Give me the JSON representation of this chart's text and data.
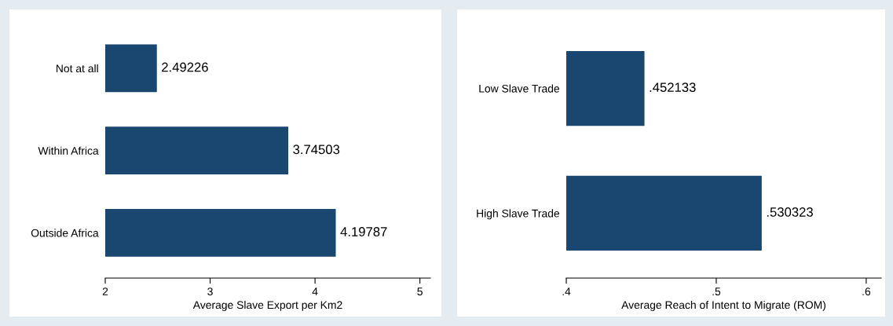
{
  "chart_data": [
    {
      "type": "bar",
      "orientation": "horizontal",
      "categories": [
        "Not at all",
        "Within Africa",
        "Outside Africa"
      ],
      "values": [
        2.49226,
        3.74503,
        4.19787
      ],
      "value_labels": [
        "2.49226",
        "3.74503",
        "4.19787"
      ],
      "color": "#1a476f",
      "xlabel": "Average Slave Export per Km2",
      "xlim": [
        2,
        5.1
      ],
      "xticks": [
        2,
        3,
        4,
        5
      ],
      "grid": false,
      "legend": false
    },
    {
      "type": "bar",
      "orientation": "horizontal",
      "categories": [
        "Low Slave Trade",
        "High Slave Trade"
      ],
      "values": [
        0.452133,
        0.530323
      ],
      "value_labels": [
        ".452133",
        ".530323"
      ],
      "color": "#1a476f",
      "xlabel": "Average Reach of Intent to Migrate (ROM)",
      "xlim": [
        0.4,
        0.61
      ],
      "xticks": [
        {
          "value": 0.4,
          "label": ".4"
        },
        {
          "value": 0.5,
          "label": ".5"
        },
        {
          "value": 0.6,
          "label": ".6"
        }
      ],
      "grid": false,
      "legend": false
    }
  ]
}
